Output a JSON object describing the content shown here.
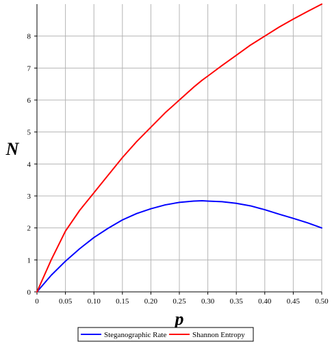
{
  "chart_data": {
    "type": "line",
    "title": "",
    "xlabel": "p",
    "ylabel": "N",
    "xlim": [
      0,
      0.5
    ],
    "ylim": [
      0,
      9
    ],
    "grid": true,
    "legend_position": "bottom",
    "x_ticks": [
      "0",
      "0.05",
      "0.10",
      "0.15",
      "0.20",
      "0.25",
      "0.30",
      "0.35",
      "0.40",
      "0.45",
      "0.50"
    ],
    "y_ticks": [
      "0",
      "1",
      "2",
      "3",
      "4",
      "5",
      "6",
      "7",
      "8"
    ],
    "x": [
      0,
      0.025,
      0.05,
      0.075,
      0.1,
      0.125,
      0.15,
      0.175,
      0.2,
      0.225,
      0.25,
      0.275,
      0.29,
      0.3,
      0.325,
      0.35,
      0.375,
      0.4,
      0.425,
      0.45,
      0.475,
      0.5
    ],
    "series": [
      {
        "name": "Steganographic Rate",
        "color": "#0000ff",
        "values": [
          0,
          0.52,
          0.96,
          1.35,
          1.7,
          1.99,
          2.25,
          2.45,
          2.6,
          2.72,
          2.8,
          2.84,
          2.85,
          2.84,
          2.82,
          2.77,
          2.69,
          2.57,
          2.43,
          2.3,
          2.16,
          2.0
        ]
      },
      {
        "name": "Shannon Entropy",
        "color": "#ff0000",
        "values": [
          0,
          1.0,
          1.9,
          2.55,
          3.1,
          3.65,
          4.2,
          4.7,
          5.15,
          5.6,
          6.0,
          6.4,
          6.62,
          6.75,
          7.08,
          7.4,
          7.72,
          8.0,
          8.28,
          8.53,
          8.77,
          9.0
        ]
      }
    ]
  }
}
